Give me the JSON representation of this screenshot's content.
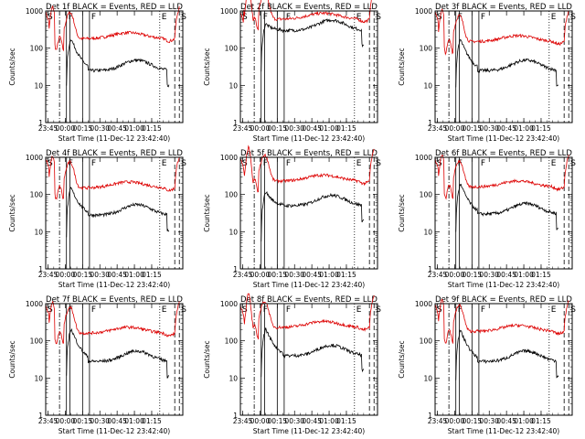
{
  "chart_data": [
    {
      "title": "Det 1f BLACK = Events, RED = LLD",
      "red_level": 180,
      "black_peak": 180,
      "black_base": 25,
      "red_spike": false
    },
    {
      "title": "Det 2f BLACK = Events, RED = LLD",
      "red_level": 600,
      "black_peak": 450,
      "black_base": 300,
      "red_spike": true
    },
    {
      "title": "Det 3f BLACK = Events, RED = LLD",
      "red_level": 150,
      "black_peak": 170,
      "black_base": 25,
      "red_spike": false
    },
    {
      "title": "Det 4f BLACK = Events, RED = LLD",
      "red_level": 150,
      "black_peak": 150,
      "black_base": 28,
      "red_spike": false
    },
    {
      "title": "Det 5f BLACK = Events, RED = LLD",
      "red_level": 230,
      "black_peak": 120,
      "black_base": 50,
      "red_spike": true
    },
    {
      "title": "Det 6f BLACK = Events, RED = LLD",
      "red_level": 160,
      "black_peak": 190,
      "black_base": 30,
      "red_spike": false
    },
    {
      "title": "Det 7f BLACK = Events, RED = LLD",
      "red_level": 160,
      "black_peak": 210,
      "black_base": 28,
      "red_spike": false
    },
    {
      "title": "Det 8f BLACK = Events, RED = LLD",
      "red_level": 230,
      "black_peak": 210,
      "black_base": 40,
      "red_spike": true
    },
    {
      "title": "Det 9f BLACK = Events, RED = LLD",
      "red_level": 180,
      "black_peak": 190,
      "black_base": 28,
      "red_spike": false
    }
  ],
  "common": {
    "type": "line",
    "ylabel": "Counts/sec",
    "xlabel": "Start Time (11-Dec-12 23:42:40)",
    "ylim": [
      1,
      1000
    ],
    "yscale": "log",
    "ytick_labels": [
      "1",
      "10",
      "100",
      "1000"
    ],
    "xlim_minutes": [
      -17,
      102
    ],
    "xticks": [
      {
        "t": -15,
        "label": "23:45"
      },
      {
        "t": 0,
        "label": "00:00"
      },
      {
        "t": 15,
        "label": "00:15"
      },
      {
        "t": 30,
        "label": "00:30"
      },
      {
        "t": 45,
        "label": "00:45"
      },
      {
        "t": 60,
        "label": "01:00"
      },
      {
        "t": 75,
        "label": "01:15"
      }
    ],
    "series_colors": {
      "events": "#000000",
      "lld": "#dd0000"
    },
    "markers": [
      {
        "label": "S",
        "t": -17,
        "style": "solid"
      },
      {
        "label": "",
        "t": -5,
        "style": "dashdot"
      },
      {
        "label": "F",
        "t": 1,
        "style": "solid"
      },
      {
        "label": "",
        "t": 4,
        "style": "solid"
      },
      {
        "label": "",
        "t": 15,
        "style": "solid"
      },
      {
        "label": "F",
        "t": 21,
        "style": "solid"
      },
      {
        "label": "E",
        "t": 82,
        "style": "dotted"
      },
      {
        "label": "",
        "t": 95,
        "style": "dashed"
      },
      {
        "label": "S",
        "t": 99,
        "style": "dashed"
      }
    ]
  }
}
